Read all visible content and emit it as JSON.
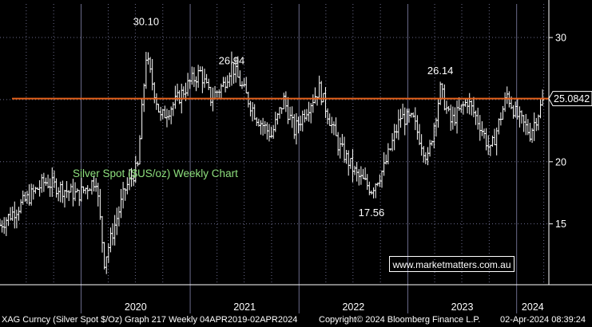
{
  "chart_data": {
    "type": "ohlc",
    "title": "Silver Spot ($US/oz) Weekly Chart",
    "y_ticks": [
      15,
      20,
      25,
      30
    ],
    "ylim": [
      10.1,
      32.7
    ],
    "x_years": [
      "2020",
      "2021",
      "2022",
      "2023",
      "2024"
    ],
    "x_range": [
      "2019-04-04",
      "2024-04-02"
    ],
    "last_price_label": "25.0842",
    "last_price": 25.0842,
    "horizontal_line": {
      "value": 25.0842,
      "color": "#e8631c"
    },
    "annotations": [
      {
        "text": "30.10",
        "date": "2020-08-06",
        "value": 30.1
      },
      {
        "text": "26.94",
        "date": "2021-05-20",
        "value": 26.94
      },
      {
        "text": "17.56",
        "date": "2022-09-01",
        "value": 17.56
      },
      {
        "text": "26.14",
        "date": "2023-04-20",
        "value": 26.14
      }
    ],
    "anchors": [
      [
        "2019-04-04",
        14.9
      ],
      [
        "2019-09-01",
        18.4
      ],
      [
        "2019-12-20",
        17.3
      ],
      [
        "2020-02-20",
        18.6
      ],
      [
        "2020-03-19",
        12.0
      ],
      [
        "2020-05-28",
        17.8
      ],
      [
        "2020-07-09",
        19.6
      ],
      [
        "2020-08-06",
        28.5
      ],
      [
        "2020-09-24",
        23.5
      ],
      [
        "2020-11-12",
        24.8
      ],
      [
        "2020-12-31",
        26.4
      ],
      [
        "2021-02-04",
        27.2
      ],
      [
        "2021-03-11",
        25.1
      ],
      [
        "2021-04-22",
        26.2
      ],
      [
        "2021-05-20",
        27.8
      ],
      [
        "2021-06-24",
        26.0
      ],
      [
        "2021-08-12",
        23.6
      ],
      [
        "2021-09-30",
        22.1
      ],
      [
        "2021-11-11",
        25.0
      ],
      [
        "2021-12-16",
        22.5
      ],
      [
        "2022-01-20",
        24.0
      ],
      [
        "2022-03-10",
        25.9
      ],
      [
        "2022-05-12",
        21.4
      ],
      [
        "2022-07-14",
        18.9
      ],
      [
        "2022-09-01",
        17.8
      ],
      [
        "2022-10-13",
        19.5
      ],
      [
        "2022-12-08",
        23.6
      ],
      [
        "2023-01-19",
        23.3
      ],
      [
        "2023-03-09",
        20.2
      ],
      [
        "2023-04-20",
        25.8
      ],
      [
        "2023-05-25",
        23.2
      ],
      [
        "2023-07-20",
        24.9
      ],
      [
        "2023-08-31",
        23.0
      ],
      [
        "2023-10-05",
        20.8
      ],
      [
        "2023-11-30",
        25.4
      ],
      [
        "2023-12-28",
        23.9
      ],
      [
        "2024-02-15",
        22.3
      ],
      [
        "2024-04-02",
        25.1
      ]
    ],
    "grid": true
  },
  "text": {
    "title": "Silver Spot ($US/oz) Weekly Chart",
    "url": "www.marketmatters.com.au",
    "footer_left": "XAG Curncy (Silver Spot  $/Oz) Graph 217  Weekly 04APR2019-02APR2024",
    "footer_mid": "Copyright© 2024 Bloomberg Finance L.P.",
    "footer_right": "02-Apr-2024 08:39:24"
  },
  "colors": {
    "background": "#000000",
    "bars": "#ffffff",
    "grid": "#6a6a8a",
    "level_line": "#e8631c",
    "title_text": "#8ee07e",
    "axis_text": "#ffffff"
  }
}
